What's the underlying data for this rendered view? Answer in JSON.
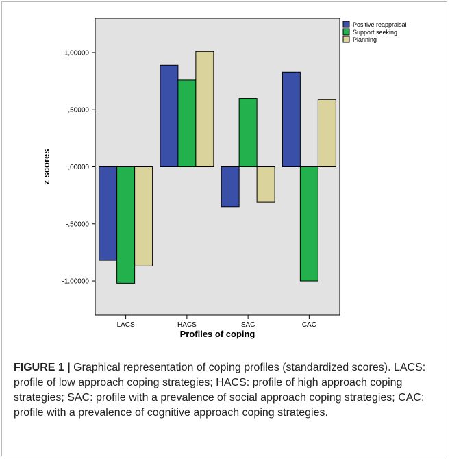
{
  "chart_data": {
    "type": "bar",
    "categories": [
      "LACS",
      "HACS",
      "SAC",
      "CAC"
    ],
    "series": [
      {
        "name": "Positive reappraisal",
        "values": [
          -0.82,
          0.89,
          -0.35,
          0.83
        ]
      },
      {
        "name": "Support seeking",
        "values": [
          -1.02,
          0.76,
          0.6,
          -1.0
        ]
      },
      {
        "name": "Planning",
        "values": [
          -0.87,
          1.01,
          -0.31,
          0.59
        ]
      }
    ],
    "title": "",
    "xlabel": "Profiles of coping",
    "ylabel": "z scores",
    "ylim": [
      -1.3,
      1.3
    ],
    "yticks": [
      1.0,
      0.5,
      0.0,
      -0.5,
      -1.0
    ],
    "ytick_labels": [
      "1,00000",
      ",50000",
      ",00000",
      "-,50000",
      "-1,00000"
    ],
    "grid": false,
    "legend": "top-right",
    "colors": [
      "#3a4fa8",
      "#22b14c",
      "#dad39b"
    ],
    "plot_background": "#e2e2e2"
  },
  "caption": {
    "label": "FIGURE 1 |",
    "text": " Graphical representation of coping profiles (standardized scores). LACS: profile of low approach coping strategies; HACS: profile of high approach coping strategies; SAC: profile with a prevalence of social approach coping strategies; CAC: profile with a prevalence of cognitive approach coping strategies."
  }
}
